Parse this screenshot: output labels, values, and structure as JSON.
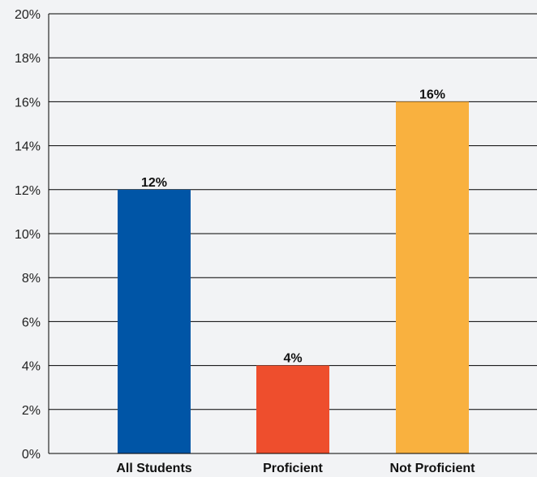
{
  "chart_data": {
    "type": "bar",
    "title": "",
    "xlabel": "",
    "ylabel": "",
    "categories": [
      "All Students",
      "Proficient",
      "Not Proficient"
    ],
    "values": [
      12,
      4,
      16
    ],
    "value_labels": [
      "12%",
      "4%",
      "16%"
    ],
    "colors": [
      "#0055a6",
      "#ee4e2d",
      "#f9b13f"
    ],
    "ylim": [
      0,
      20
    ],
    "yticks": [
      0,
      2,
      4,
      6,
      8,
      10,
      12,
      14,
      16,
      18,
      20
    ],
    "ytick_labels": [
      "0%",
      "2%",
      "4%",
      "6%",
      "8%",
      "10%",
      "12%",
      "14%",
      "16%",
      "18%",
      "20%"
    ],
    "grid": true,
    "legend": "none"
  }
}
